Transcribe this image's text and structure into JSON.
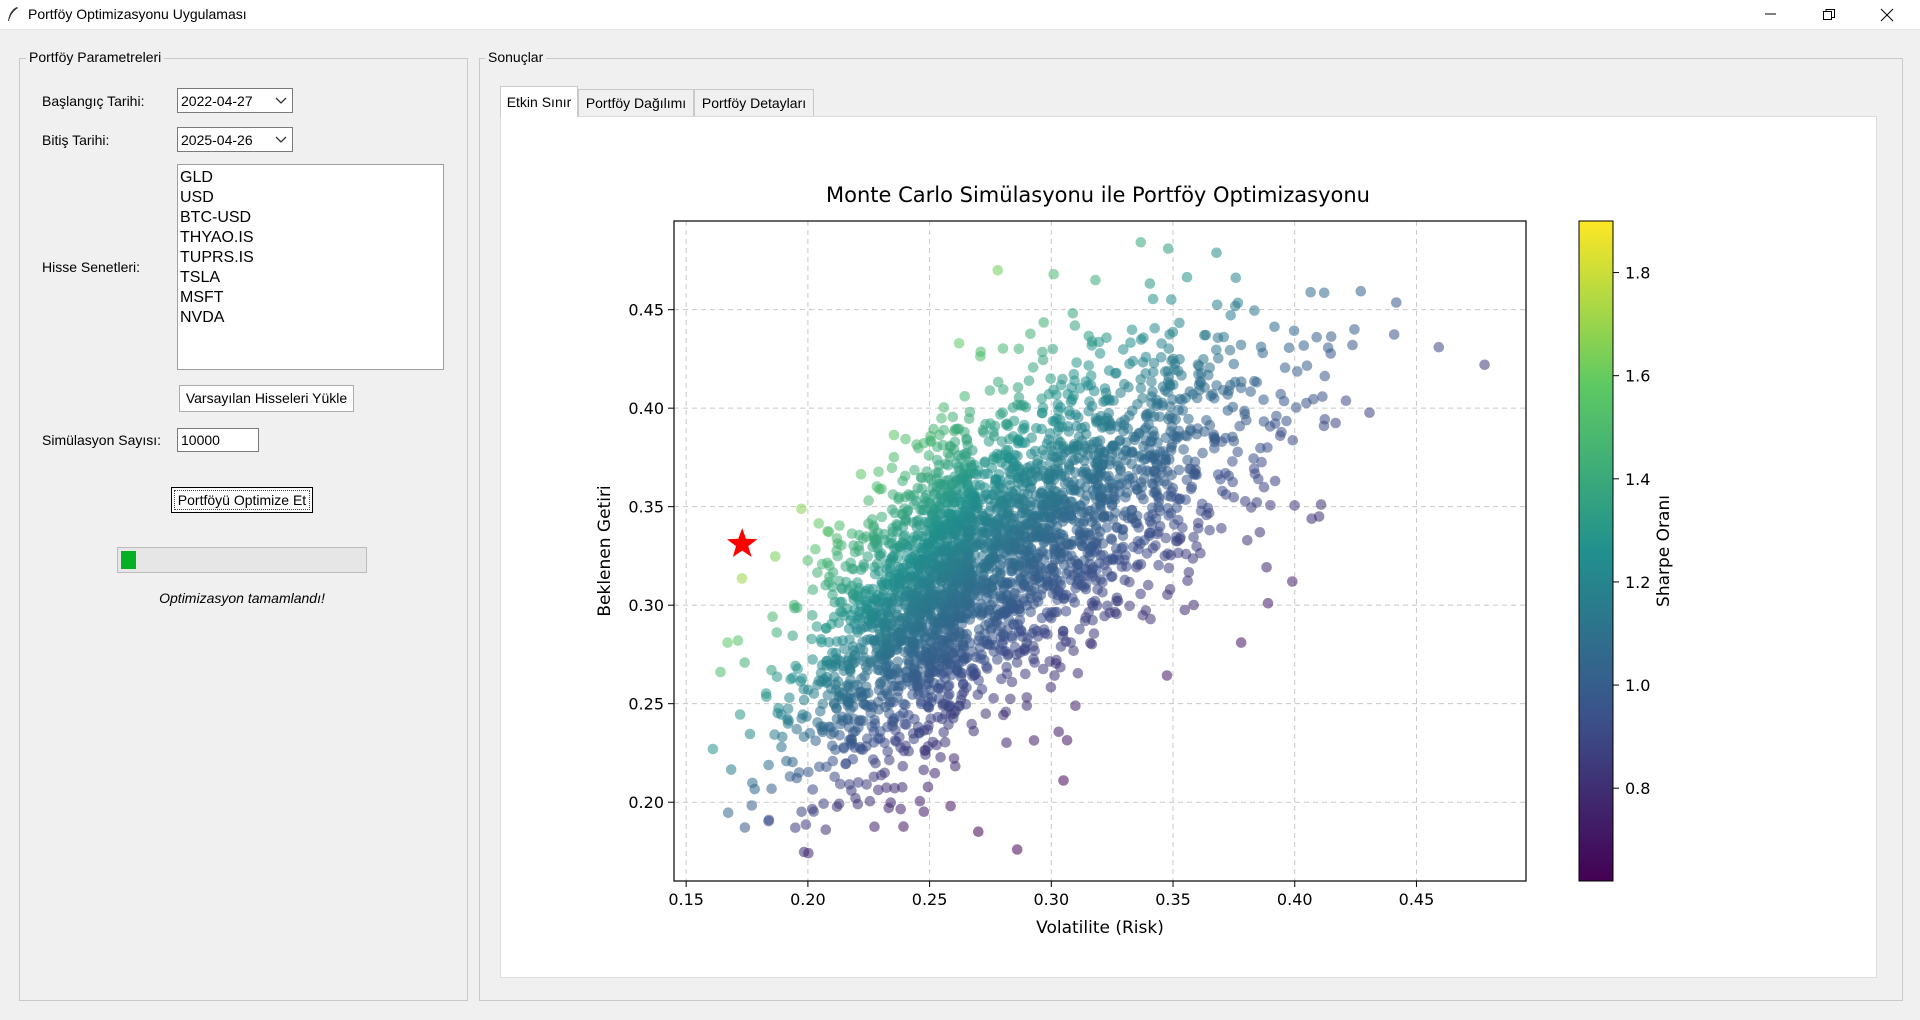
{
  "window": {
    "title": "Portföy Optimizasyonu Uygulaması"
  },
  "params": {
    "group_title": "Portföy Parametreleri",
    "start_label": "Başlangıç Tarihi:",
    "start_value": "2022-04-27",
    "end_label": "Bitiş Tarihi:",
    "end_value": "2025-04-26",
    "stocks_label": "Hisse Senetleri:",
    "stocks": [
      "GLD",
      "USD",
      "BTC-USD",
      "THYAO.IS",
      "TUPRS.IS",
      "TSLA",
      "MSFT",
      "NVDA"
    ],
    "load_defaults_button": "Varsayılan Hisseleri Yükle",
    "sim_label": "Simülasyon Sayısı:",
    "sim_value": "10000",
    "optimize_button": "Portföyü Optimize Et",
    "progress": 0.06,
    "status": "Optimizasyon tamamlandı!"
  },
  "results": {
    "group_title": "Sonuçlar",
    "tabs": [
      {
        "label": "Etkin Sınır",
        "active": true
      },
      {
        "label": "Portföy Dağılımı",
        "active": false
      },
      {
        "label": "Portföy Detayları",
        "active": false
      }
    ]
  },
  "colors": {
    "progress_fill": "#06b025",
    "optimal_marker": "#ff0000"
  },
  "chart_data": {
    "type": "scatter",
    "title": "Monte Carlo Simülasyonu ile Portföy Optimizasyonu",
    "xlabel": "Volatilite (Risk)",
    "ylabel": "Beklenen Getiri",
    "xlim": [
      0.145,
      0.495
    ],
    "ylim": [
      0.16,
      0.495
    ],
    "xticks": [
      "0.15",
      "0.20",
      "0.25",
      "0.30",
      "0.35",
      "0.40",
      "0.45"
    ],
    "yticks": [
      "0.20",
      "0.25",
      "0.30",
      "0.35",
      "0.40",
      "0.45"
    ],
    "grid": true,
    "colormap": "viridis",
    "colorbar_label": "Sharpe Oranı",
    "colorbar_range": [
      0.62,
      1.9
    ],
    "colorbar_ticks": [
      "0.8",
      "1.0",
      "1.2",
      "1.4",
      "1.6",
      "1.8"
    ],
    "n_points": 10000,
    "optimal_point": {
      "x": 0.173,
      "y": 0.331,
      "marker": "star"
    },
    "sample_points": [
      [
        0.161,
        0.227
      ],
      [
        0.478,
        0.422
      ],
      [
        0.286,
        0.176
      ],
      [
        0.27,
        0.185
      ],
      [
        0.305,
        0.211
      ],
      [
        0.184,
        0.191
      ],
      [
        0.409,
        0.436
      ],
      [
        0.348,
        0.481
      ],
      [
        0.278,
        0.47
      ],
      [
        0.301,
        0.468
      ],
      [
        0.412,
        0.391
      ],
      [
        0.41,
        0.345
      ],
      [
        0.399,
        0.312
      ],
      [
        0.389,
        0.301
      ],
      [
        0.378,
        0.281
      ],
      [
        0.167,
        0.281
      ]
    ]
  }
}
